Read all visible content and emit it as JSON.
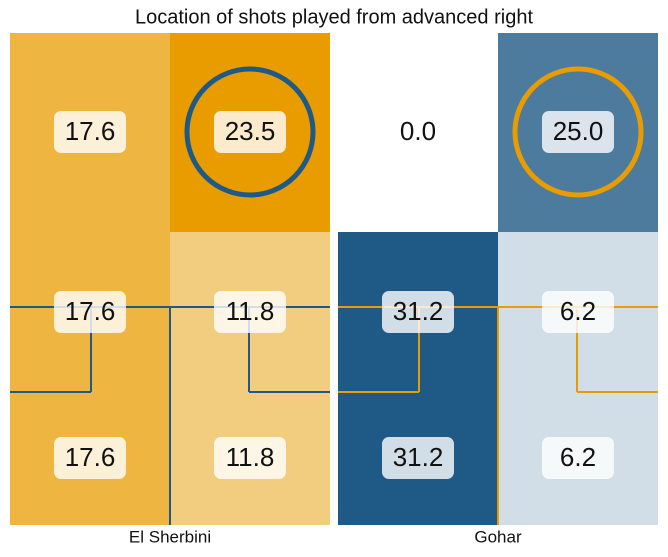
{
  "chart_data": {
    "type": "heatmap",
    "title": "Location of shots played from advanced right",
    "panels": [
      {
        "name": "El Sherbini",
        "color": "#e89c00",
        "line_color": "#1f5a86",
        "values": [
          [
            17.6,
            23.5
          ],
          [
            17.6,
            11.8
          ],
          [
            17.6,
            11.8
          ]
        ],
        "value_labels": [
          [
            "17.6",
            "23.5"
          ],
          [
            "17.6",
            "11.8"
          ],
          [
            "17.6",
            "11.8"
          ]
        ],
        "highlight": [
          0,
          1
        ]
      },
      {
        "name": "Gohar",
        "color": "#1f5a86",
        "line_color": "#e89c00",
        "values": [
          [
            0.0,
            25.0
          ],
          [
            31.2,
            6.2
          ],
          [
            31.2,
            6.2
          ]
        ],
        "value_labels": [
          [
            "0.0",
            "25.0"
          ],
          [
            "31.2",
            "6.2"
          ],
          [
            "31.2",
            "6.2"
          ]
        ],
        "highlight": [
          0,
          1
        ]
      }
    ]
  }
}
